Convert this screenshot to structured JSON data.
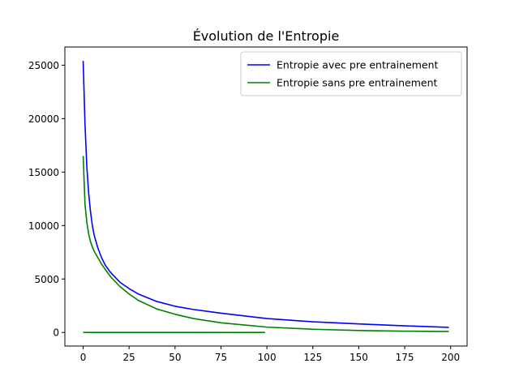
{
  "chart_data": {
    "type": "line",
    "title": "Évolution de l'Entropie",
    "xlabel": "",
    "ylabel": "",
    "xlim": [
      -9.95,
      208.95
    ],
    "ylim": [
      -1272,
      26700
    ],
    "xticks": [
      0,
      25,
      50,
      75,
      100,
      125,
      150,
      175,
      200
    ],
    "yticks": [
      0,
      5000,
      10000,
      15000,
      20000,
      25000
    ],
    "grid": false,
    "legend_position": "upper-right",
    "series": [
      {
        "name": "Entropie avec pre entrainement",
        "color": "#0000ff",
        "points": [
          [
            0,
            25400
          ],
          [
            1,
            19500
          ],
          [
            2,
            15500
          ],
          [
            3,
            13000
          ],
          [
            4,
            11300
          ],
          [
            5,
            10000
          ],
          [
            6,
            9100
          ],
          [
            8,
            7900
          ],
          [
            10,
            7000
          ],
          [
            12,
            6300
          ],
          [
            15,
            5600
          ],
          [
            20,
            4700
          ],
          [
            25,
            4100
          ],
          [
            30,
            3600
          ],
          [
            40,
            2900
          ],
          [
            50,
            2450
          ],
          [
            60,
            2150
          ],
          [
            75,
            1800
          ],
          [
            100,
            1300
          ],
          [
            125,
            1000
          ],
          [
            150,
            800
          ],
          [
            175,
            620
          ],
          [
            199,
            480
          ]
        ]
      },
      {
        "name": "Entropie sans pre entrainement",
        "color": "#008000",
        "points": [
          [
            0,
            16500
          ],
          [
            1,
            12000
          ],
          [
            2,
            10300
          ],
          [
            3,
            9200
          ],
          [
            4,
            8500
          ],
          [
            5,
            8000
          ],
          [
            6,
            7600
          ],
          [
            8,
            7000
          ],
          [
            10,
            6400
          ],
          [
            12,
            5900
          ],
          [
            15,
            5200
          ],
          [
            20,
            4300
          ],
          [
            25,
            3600
          ],
          [
            30,
            3000
          ],
          [
            40,
            2200
          ],
          [
            50,
            1700
          ],
          [
            60,
            1300
          ],
          [
            75,
            900
          ],
          [
            100,
            500
          ],
          [
            125,
            300
          ],
          [
            150,
            180
          ],
          [
            175,
            120
          ],
          [
            199,
            90
          ]
        ]
      },
      {
        "name": "",
        "color": "#008000",
        "points": [
          [
            0,
            0
          ],
          [
            99,
            0
          ]
        ]
      }
    ]
  }
}
